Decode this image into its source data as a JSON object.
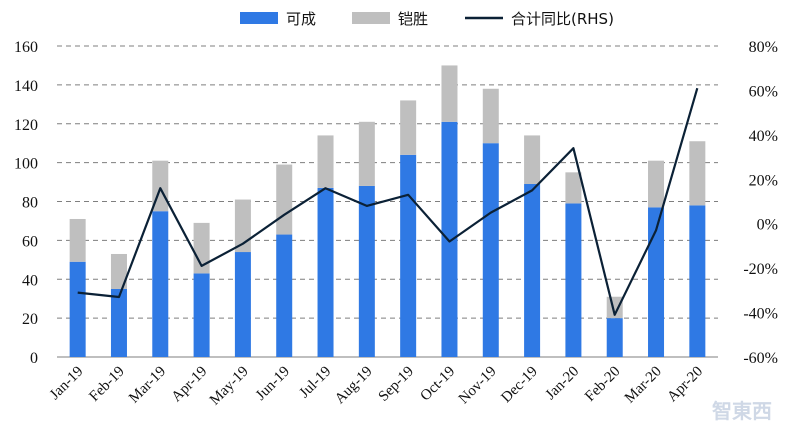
{
  "chart_data": {
    "type": "bar",
    "stacked": true,
    "categories": [
      "Jan-19",
      "Feb-19",
      "Mar-19",
      "Apr-19",
      "May-19",
      "Jun-19",
      "Jul-19",
      "Aug-19",
      "Sep-19",
      "Oct-19",
      "Nov-19",
      "Dec-19",
      "Jan-20",
      "Feb-20",
      "Mar-20",
      "Apr-20"
    ],
    "series": [
      {
        "name": "可成",
        "type": "bar",
        "axis": "left",
        "color": "#2f79e4",
        "values": [
          49,
          35,
          75,
          43,
          54,
          63,
          87,
          88,
          104,
          121,
          110,
          89,
          79,
          20,
          77,
          78
        ]
      },
      {
        "name": "铠胜",
        "type": "bar",
        "axis": "left",
        "color": "#bfbfbf",
        "values": [
          22,
          18,
          26,
          26,
          27,
          36,
          27,
          33,
          28,
          29,
          28,
          25,
          16,
          11,
          24,
          33
        ]
      },
      {
        "name": "合计同比(RHS)",
        "type": "line",
        "axis": "right",
        "color": "#0b2136",
        "values": [
          -31,
          -33,
          16,
          -19,
          -9,
          4,
          16,
          8,
          13,
          -8,
          5,
          15,
          34,
          -41,
          -3,
          61
        ]
      }
    ],
    "ylim": [
      0,
      160
    ],
    "yticks": [
      "0",
      "20",
      "40",
      "60",
      "80",
      "100",
      "120",
      "140",
      "160"
    ],
    "y2lim": [
      -60,
      80
    ],
    "y2ticks": [
      "-60%",
      "-40%",
      "-20%",
      "0%",
      "20%",
      "40%",
      "60%",
      "80%"
    ],
    "grid": "horizontal dashed",
    "legend": "top-center"
  },
  "watermark": "智東西"
}
